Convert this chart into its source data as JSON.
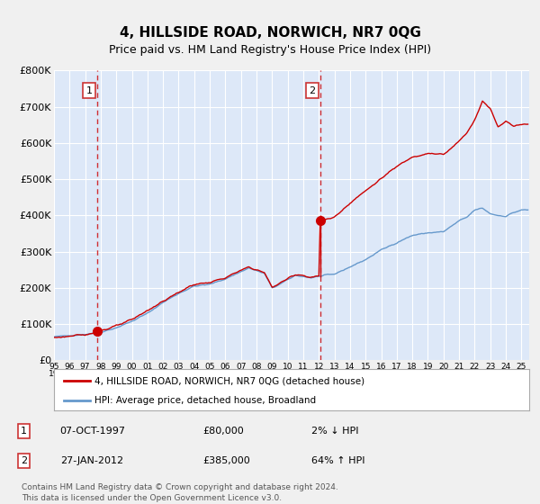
{
  "title": "4, HILLSIDE ROAD, NORWICH, NR7 0QG",
  "subtitle": "Price paid vs. HM Land Registry's House Price Index (HPI)",
  "legend_line1": "4, HILLSIDE ROAD, NORWICH, NR7 0QG (detached house)",
  "legend_line2": "HPI: Average price, detached house, Broadland",
  "annotation1_date": "07-OCT-1997",
  "annotation1_price": "£80,000",
  "annotation1_hpi": "2% ↓ HPI",
  "annotation1_year": 1997.77,
  "annotation1_value": 80000,
  "annotation2_date": "27-JAN-2012",
  "annotation2_price": "£385,000",
  "annotation2_hpi": "64% ↑ HPI",
  "annotation2_year": 2012.07,
  "annotation2_value": 385000,
  "red_line_color": "#cc0000",
  "blue_line_color": "#6699cc",
  "dashed_vline_color": "#cc0000",
  "background_color": "#dde8f8",
  "grid_color": "#ffffff",
  "ylim": [
    0,
    800000
  ],
  "xlim_start": 1995.0,
  "xlim_end": 2025.5,
  "footer": "Contains HM Land Registry data © Crown copyright and database right 2024.\nThis data is licensed under the Open Government Licence v3.0.",
  "yticks": [
    0,
    100000,
    200000,
    300000,
    400000,
    500000,
    600000,
    700000,
    800000
  ],
  "ytick_labels": [
    "£0",
    "£100K",
    "£200K",
    "£300K",
    "£400K",
    "£500K",
    "£600K",
    "£700K",
    "£800K"
  ]
}
